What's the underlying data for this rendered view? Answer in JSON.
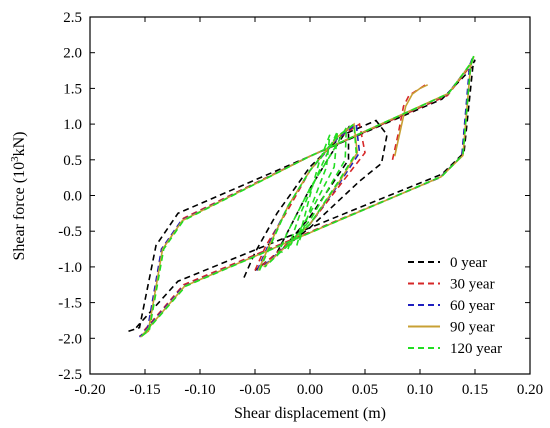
{
  "chart_data": {
    "type": "line",
    "title": "",
    "xlabel": "Shear displacement (m)",
    "ylabel_main": "Shear force (10",
    "ylabel_sup": "3",
    "ylabel_tail": "kN)",
    "xlim": [
      -0.2,
      0.2
    ],
    "ylim": [
      -2.5,
      2.5
    ],
    "x_ticks": [
      -0.2,
      -0.15,
      -0.1,
      -0.05,
      0.0,
      0.05,
      0.1,
      0.15,
      0.2
    ],
    "x_tick_labels": [
      "-0.20",
      "-0.15",
      "-0.10",
      "-0.05",
      "0.00",
      "0.05",
      "0.10",
      "0.15",
      "0.20"
    ],
    "y_ticks": [
      -2.5,
      -2.0,
      -1.5,
      -1.0,
      -0.5,
      0.0,
      0.5,
      1.0,
      1.5,
      2.0,
      2.5
    ],
    "y_tick_labels": [
      "-2.5",
      "-2.0",
      "-1.5",
      "-1.0",
      "-0.5",
      "0.0",
      "0.5",
      "1.0",
      "1.5",
      "2.0",
      "2.5"
    ],
    "grid": false,
    "legend_position": "bottom-right",
    "series": [
      {
        "name": "0 year",
        "color": "#000000",
        "style": "dashed",
        "loops": [
          [
            [
              -0.165,
              -1.9
            ],
            [
              -0.155,
              -1.85
            ],
            [
              -0.14,
              -0.7
            ],
            [
              -0.12,
              -0.25
            ],
            [
              0.0,
              0.55
            ],
            [
              0.12,
              1.35
            ],
            [
              0.145,
              1.75
            ],
            [
              0.15,
              1.9
            ],
            [
              0.148,
              1.8
            ],
            [
              0.14,
              0.6
            ],
            [
              0.12,
              0.3
            ],
            [
              -0.12,
              -1.2
            ],
            [
              -0.158,
              -1.85
            ]
          ],
          [
            [
              -0.06,
              -1.15
            ],
            [
              -0.05,
              -0.8
            ],
            [
              -0.03,
              -0.25
            ],
            [
              0.0,
              0.4
            ],
            [
              0.03,
              0.85
            ],
            [
              0.06,
              1.05
            ],
            [
              0.07,
              0.85
            ],
            [
              0.065,
              0.45
            ],
            [
              0.045,
              0.2
            ],
            [
              0.0,
              -0.45
            ],
            [
              -0.05,
              -1.05
            ]
          ],
          [
            [
              -0.03,
              -0.8
            ],
            [
              -0.02,
              -0.5
            ],
            [
              0.0,
              0.1
            ],
            [
              0.02,
              0.6
            ],
            [
              0.035,
              0.95
            ],
            [
              0.035,
              0.5
            ],
            [
              0.0,
              -0.3
            ],
            [
              -0.025,
              -0.75
            ]
          ]
        ]
      },
      {
        "name": "30 year",
        "color": "#d62728",
        "style": "dashed",
        "loops": [
          [
            [
              -0.155,
              -1.97
            ],
            [
              -0.147,
              -1.9
            ],
            [
              -0.135,
              -0.75
            ],
            [
              -0.115,
              -0.32
            ],
            [
              0.0,
              0.55
            ],
            [
              0.125,
              1.4
            ],
            [
              0.145,
              1.8
            ],
            [
              0.148,
              1.93
            ],
            [
              0.146,
              1.8
            ],
            [
              0.138,
              0.55
            ],
            [
              0.118,
              0.25
            ],
            [
              -0.115,
              -1.25
            ],
            [
              -0.153,
              -1.93
            ]
          ],
          [
            [
              0.075,
              0.5
            ],
            [
              0.08,
              0.85
            ],
            [
              0.085,
              1.25
            ],
            [
              0.09,
              1.4
            ],
            [
              0.1,
              1.5
            ],
            [
              0.105,
              1.55
            ]
          ],
          [
            [
              -0.05,
              -1.05
            ],
            [
              -0.04,
              -0.7
            ],
            [
              -0.02,
              -0.2
            ],
            [
              0.0,
              0.35
            ],
            [
              0.025,
              0.8
            ],
            [
              0.045,
              1.0
            ],
            [
              0.05,
              0.6
            ],
            [
              0.03,
              0.2
            ],
            [
              0.0,
              -0.4
            ],
            [
              -0.045,
              -1.0
            ]
          ]
        ]
      },
      {
        "name": "60 year",
        "color": "#1f1fbf",
        "style": "dashed",
        "loops": [
          [
            [
              -0.155,
              -1.98
            ],
            [
              -0.148,
              -1.9
            ],
            [
              -0.135,
              -0.75
            ],
            [
              -0.117,
              -0.35
            ],
            [
              0.0,
              0.55
            ],
            [
              0.125,
              1.42
            ],
            [
              0.145,
              1.82
            ],
            [
              0.148,
              1.94
            ],
            [
              0.145,
              1.8
            ],
            [
              0.138,
              0.55
            ],
            [
              0.118,
              0.25
            ],
            [
              -0.115,
              -1.27
            ],
            [
              -0.153,
              -1.95
            ]
          ],
          [
            [
              -0.048,
              -1.05
            ],
            [
              -0.038,
              -0.7
            ],
            [
              -0.02,
              -0.15
            ],
            [
              0.0,
              0.35
            ],
            [
              0.025,
              0.8
            ],
            [
              0.042,
              1.0
            ],
            [
              0.045,
              0.6
            ],
            [
              0.028,
              0.2
            ],
            [
              0.0,
              -0.4
            ],
            [
              -0.043,
              -1.0
            ]
          ]
        ]
      },
      {
        "name": "90 year",
        "color": "#c8a034",
        "style": "solid",
        "loops": [
          [
            [
              -0.154,
              -1.98
            ],
            [
              -0.147,
              -1.9
            ],
            [
              -0.134,
              -0.75
            ],
            [
              -0.116,
              -0.35
            ],
            [
              0.0,
              0.55
            ],
            [
              0.126,
              1.43
            ],
            [
              0.146,
              1.84
            ],
            [
              0.149,
              1.95
            ],
            [
              0.146,
              1.82
            ],
            [
              0.139,
              0.56
            ],
            [
              0.119,
              0.26
            ],
            [
              -0.114,
              -1.27
            ],
            [
              -0.152,
              -1.95
            ]
          ],
          [
            [
              0.077,
              0.55
            ],
            [
              0.082,
              0.9
            ],
            [
              0.087,
              1.25
            ],
            [
              0.093,
              1.42
            ],
            [
              0.1,
              1.5
            ],
            [
              0.107,
              1.55
            ]
          ],
          [
            [
              -0.047,
              -1.05
            ],
            [
              -0.037,
              -0.7
            ],
            [
              -0.02,
              -0.15
            ],
            [
              0.0,
              0.35
            ],
            [
              0.025,
              0.82
            ],
            [
              0.04,
              1.0
            ],
            [
              0.043,
              0.6
            ],
            [
              0.027,
              0.2
            ],
            [
              0.0,
              -0.4
            ],
            [
              -0.042,
              -1.0
            ]
          ]
        ]
      },
      {
        "name": "120 year",
        "color": "#22dd22",
        "style": "dashed",
        "loops": [
          [
            [
              -0.153,
              -1.97
            ],
            [
              -0.146,
              -1.88
            ],
            [
              -0.133,
              -0.75
            ],
            [
              -0.115,
              -0.35
            ],
            [
              0.0,
              0.55
            ],
            [
              0.126,
              1.43
            ],
            [
              0.146,
              1.85
            ],
            [
              0.149,
              1.96
            ],
            [
              0.146,
              1.82
            ],
            [
              0.139,
              0.57
            ],
            [
              0.12,
              0.27
            ],
            [
              -0.113,
              -1.27
            ],
            [
              -0.151,
              -1.94
            ]
          ],
          [
            [
              -0.046,
              -1.05
            ],
            [
              -0.036,
              -0.7
            ],
            [
              -0.02,
              -0.15
            ],
            [
              0.0,
              0.35
            ],
            [
              0.024,
              0.82
            ],
            [
              0.04,
              1.0
            ],
            [
              0.042,
              0.6
            ],
            [
              0.026,
              0.2
            ],
            [
              0.0,
              -0.4
            ],
            [
              -0.041,
              -1.0
            ]
          ],
          [
            [
              -0.03,
              -0.85
            ],
            [
              -0.02,
              -0.5
            ],
            [
              0.0,
              0.1
            ],
            [
              0.02,
              0.6
            ],
            [
              0.033,
              0.95
            ],
            [
              0.032,
              0.5
            ],
            [
              0.0,
              -0.35
            ],
            [
              -0.026,
              -0.8
            ]
          ],
          [
            [
              -0.02,
              -0.75
            ],
            [
              -0.01,
              -0.3
            ],
            [
              0.0,
              0.05
            ],
            [
              0.01,
              0.4
            ],
            [
              0.025,
              0.9
            ],
            [
              0.022,
              0.4
            ],
            [
              0.0,
              -0.25
            ],
            [
              -0.018,
              -0.7
            ]
          ],
          [
            [
              -0.012,
              -0.7
            ],
            [
              -0.005,
              -0.3
            ],
            [
              0.0,
              0.0
            ],
            [
              0.008,
              0.45
            ],
            [
              0.018,
              0.85
            ],
            [
              0.015,
              0.4
            ],
            [
              0.0,
              -0.2
            ],
            [
              -0.01,
              -0.65
            ]
          ]
        ]
      }
    ]
  }
}
